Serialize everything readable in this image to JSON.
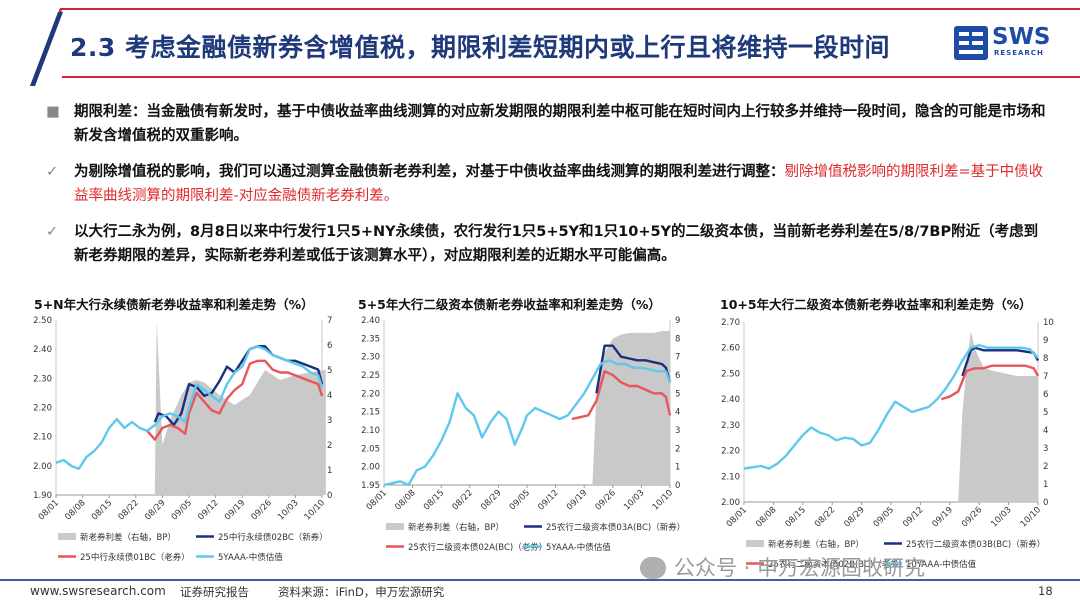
{
  "header": {
    "title": "2.3 考虑金融债新券含增值税，期限利差短期内或上行且将维持一段时间",
    "logo_text": "SWS",
    "logo_sub": "RESEARCH"
  },
  "bullets": [
    {
      "text": "期限利差：当金融债有新发时，基于中债收益率曲线测算的对应新发期限的期限利差中枢可能在短时间内上行较多并维持一段时间，隐含的可能是市场和新发含增值税的双重影响。",
      "highlight": ""
    },
    {
      "text": "为剔除增值税的影响，我们可以通过测算金融债新老券利差，对基于中债收益率曲线测算的期限利差进行调整：",
      "highlight": "剔除增值税影响的期限利差=基于中债收益率曲线测算的期限利差-对应金融债新老券利差。"
    },
    {
      "text": "以大行二永为例，8月8日以来中行发行1只5+NY永续债，农行发行1只5+5Y和1只10+5Y的二级资本债，当前新老券利差在5/8/7BP附近（考虑到新老券期限的差异，实际新老券利差或低于该测算水平），对应期限利差的近期水平可能偏高。",
      "highlight": ""
    }
  ],
  "colors": {
    "grey": "#c9c9c9",
    "navy": "#1a2f80",
    "red": "#e8555a",
    "cyan": "#5ec8ee",
    "title": "#1f3a7a"
  },
  "footer": {
    "website": "www.swsresearch.com",
    "report": "证券研究报告",
    "source": "资料来源：iFinD，申万宏源研究",
    "page": "18"
  },
  "watermark": "公众号 · 申万宏源固收研究",
  "chart_data": [
    {
      "type": "line",
      "title": "5+N年大行永续债新老券收益率和利差走势（%）",
      "xticks": [
        "08/01",
        "08/08",
        "08/15",
        "08/22",
        "08/29",
        "09/05",
        "09/12",
        "09/19",
        "09/26",
        "10/03",
        "10/10"
      ],
      "ylim": [
        1.9,
        2.5
      ],
      "yticks": [
        1.9,
        2.0,
        2.1,
        2.2,
        2.3,
        2.4,
        2.5
      ],
      "y2lim": [
        0,
        7
      ],
      "y2ticks": [
        0,
        1,
        2,
        3,
        4,
        5,
        6,
        7
      ],
      "legend": [
        "新老券利差（右轴，BP）",
        "25中行永续债02BC（新券）",
        "25中行永续债01BC（老券）",
        "5YAAA-中债估值"
      ],
      "series": [
        {
          "name": "新老券利差（右轴，BP）",
          "axis": "right",
          "style": "area",
          "x": [
            26,
            26.5,
            28,
            30,
            33,
            35,
            37,
            39,
            43,
            47,
            51,
            55,
            59,
            63,
            67,
            70,
            71
          ],
          "y": [
            0,
            7,
            2.0,
            3.0,
            4.0,
            4.5,
            4.6,
            4.5,
            4.0,
            3.6,
            4.0,
            5.0,
            4.6,
            4.8,
            4.9,
            5.0,
            5.0
          ]
        },
        {
          "name": "25中行永续债02BC（新券）",
          "axis": "left",
          "style": "line",
          "x": [
            26,
            27,
            29,
            31,
            33,
            35,
            37,
            39,
            41,
            43,
            45,
            47,
            49,
            51,
            53,
            55,
            57,
            59,
            61,
            63,
            65,
            67,
            69,
            70
          ],
          "y": [
            2.15,
            2.18,
            2.17,
            2.14,
            2.18,
            2.28,
            2.27,
            2.24,
            2.25,
            2.29,
            2.34,
            2.32,
            2.36,
            2.4,
            2.41,
            2.41,
            2.38,
            2.37,
            2.36,
            2.36,
            2.35,
            2.34,
            2.33,
            2.28
          ]
        },
        {
          "name": "25中行永续债01BC（老券）",
          "axis": "left",
          "style": "line",
          "x": [
            24,
            26,
            28,
            30,
            32,
            34,
            35,
            37,
            39,
            41,
            43,
            45,
            47,
            49,
            51,
            53,
            55,
            57,
            59,
            61,
            63,
            65,
            67,
            69,
            70
          ],
          "y": [
            2.12,
            2.09,
            2.13,
            2.14,
            2.13,
            2.11,
            2.18,
            2.25,
            2.22,
            2.19,
            2.18,
            2.23,
            2.26,
            2.28,
            2.35,
            2.36,
            2.36,
            2.33,
            2.32,
            2.32,
            2.31,
            2.3,
            2.29,
            2.28,
            2.24
          ]
        },
        {
          "name": "5YAAA-中债估值",
          "axis": "left",
          "style": "line",
          "x": [
            0,
            2,
            4,
            6,
            8,
            10,
            12,
            14,
            16,
            18,
            20,
            22,
            24,
            26,
            28,
            30,
            32,
            34,
            35,
            37,
            39,
            41,
            43,
            45,
            47,
            49,
            51,
            53,
            55,
            57,
            59,
            61,
            63,
            65,
            67,
            69,
            70
          ],
          "y": [
            2.01,
            2.02,
            2.0,
            1.99,
            2.03,
            2.05,
            2.08,
            2.13,
            2.16,
            2.13,
            2.15,
            2.13,
            2.12,
            2.14,
            2.17,
            2.18,
            2.17,
            2.15,
            2.2,
            2.28,
            2.26,
            2.24,
            2.22,
            2.28,
            2.32,
            2.34,
            2.4,
            2.41,
            2.4,
            2.38,
            2.37,
            2.36,
            2.35,
            2.34,
            2.32,
            2.31,
            2.27
          ]
        }
      ]
    },
    {
      "type": "line",
      "title": "5+5年大行二级资本债新老券收益率和利差走势（%）",
      "xticks": [
        "08/01",
        "08/08",
        "08/15",
        "08/22",
        "08/29",
        "09/05",
        "09/12",
        "09/19",
        "09/26",
        "10/03",
        "10/10"
      ],
      "ylim": [
        1.95,
        2.4
      ],
      "yticks": [
        1.95,
        2.0,
        2.05,
        2.1,
        2.15,
        2.2,
        2.25,
        2.3,
        2.35,
        2.4
      ],
      "y2lim": [
        0,
        9
      ],
      "y2ticks": [
        0,
        1,
        2,
        3,
        4,
        5,
        6,
        7,
        8,
        9
      ],
      "legend": [
        "新老券利差（右轴，BP）",
        "25农行二级资本债03A(BC)（新券）",
        "25农行二级资本债02A(BC)（老券）",
        "5YAAA-中债估值"
      ],
      "series": [
        {
          "name": "新老券利差（右轴，BP）",
          "axis": "right",
          "style": "area",
          "x": [
            51,
            52,
            53,
            54,
            56,
            58,
            60,
            62,
            64,
            66,
            68,
            70
          ],
          "y": [
            0,
            5.0,
            6.0,
            7.2,
            8.0,
            8.2,
            8.3,
            8.3,
            8.3,
            8.3,
            8.4,
            8.4
          ]
        },
        {
          "name": "25农行二级资本债03A(BC)（新券）",
          "axis": "left",
          "style": "line",
          "x": [
            52,
            54,
            55,
            56,
            58,
            60,
            62,
            64,
            66,
            68,
            69,
            70
          ],
          "y": [
            2.2,
            2.33,
            2.33,
            2.33,
            2.3,
            2.295,
            2.29,
            2.29,
            2.285,
            2.28,
            2.27,
            2.23
          ]
        },
        {
          "name": "25农行二级资本债02A(BC)（老券）",
          "axis": "left",
          "style": "line",
          "x": [
            46,
            48,
            50,
            52,
            54,
            55,
            56,
            58,
            60,
            62,
            64,
            66,
            68,
            69,
            70
          ],
          "y": [
            2.13,
            2.135,
            2.14,
            2.18,
            2.26,
            2.255,
            2.25,
            2.23,
            2.22,
            2.22,
            2.21,
            2.2,
            2.2,
            2.19,
            2.14
          ]
        },
        {
          "name": "5YAAA-中债估值",
          "axis": "left",
          "style": "line",
          "x": [
            0,
            2,
            4,
            6,
            8,
            10,
            12,
            14,
            16,
            18,
            20,
            22,
            24,
            26,
            28,
            30,
            32,
            34,
            35,
            37,
            39,
            41,
            43,
            45,
            47,
            49,
            51,
            53,
            55,
            57,
            59,
            61,
            63,
            65,
            67,
            69,
            70
          ],
          "y": [
            1.95,
            1.955,
            1.96,
            1.95,
            1.99,
            2.0,
            2.03,
            2.07,
            2.12,
            2.2,
            2.16,
            2.14,
            2.08,
            2.12,
            2.15,
            2.13,
            2.06,
            2.11,
            2.14,
            2.16,
            2.15,
            2.14,
            2.13,
            2.14,
            2.17,
            2.2,
            2.24,
            2.28,
            2.29,
            2.28,
            2.28,
            2.27,
            2.27,
            2.265,
            2.26,
            2.26,
            2.23
          ]
        }
      ]
    },
    {
      "type": "line",
      "title": "10+5年大行二级资本债新老券收益率和利差走势（%）",
      "xticks": [
        "08/01",
        "08/08",
        "08/15",
        "08/22",
        "08/29",
        "09/05",
        "09/12",
        "09/19",
        "09/26",
        "10/03",
        "10/10"
      ],
      "ylim": [
        2.0,
        2.7
      ],
      "yticks": [
        2.0,
        2.1,
        2.2,
        2.3,
        2.4,
        2.5,
        2.6,
        2.7
      ],
      "y2lim": [
        0,
        10
      ],
      "y2ticks": [
        0,
        1,
        2,
        3,
        4,
        5,
        6,
        7,
        8,
        9,
        10
      ],
      "legend": [
        "新老券利差（右轴，BP）",
        "25农行二级资本债03B(BC)（新券）",
        "25农行二级资本债02B(BC)（老券）",
        "10YAAA-中债估值"
      ],
      "series": [
        {
          "name": "新老券利差（右轴，BP）",
          "axis": "right",
          "style": "area",
          "x": [
            51,
            52,
            53,
            54,
            55,
            57,
            59,
            61,
            63,
            65,
            67,
            69,
            70
          ],
          "y": [
            0,
            5.0,
            7.5,
            9.5,
            8.5,
            7.5,
            7.3,
            7.2,
            7.1,
            7.0,
            7.0,
            7.0,
            7.0
          ]
        },
        {
          "name": "25农行二级资本债03B(BC)（新券）",
          "axis": "left",
          "style": "line",
          "x": [
            52,
            54,
            55,
            57,
            59,
            61,
            63,
            65,
            67,
            69,
            70
          ],
          "y": [
            2.49,
            2.59,
            2.6,
            2.59,
            2.59,
            2.59,
            2.59,
            2.59,
            2.585,
            2.58,
            2.55
          ]
        },
        {
          "name": "25农行二级资本债02B(BC)（老券）",
          "axis": "left",
          "style": "line",
          "x": [
            47,
            49,
            51,
            53,
            55,
            57,
            59,
            61,
            63,
            65,
            67,
            69,
            70
          ],
          "y": [
            2.4,
            2.41,
            2.43,
            2.51,
            2.52,
            2.52,
            2.53,
            2.53,
            2.53,
            2.53,
            2.53,
            2.52,
            2.49
          ]
        },
        {
          "name": "10YAAA-中债估值",
          "axis": "left",
          "style": "line",
          "x": [
            0,
            2,
            4,
            6,
            8,
            10,
            12,
            14,
            16,
            18,
            20,
            22,
            24,
            26,
            28,
            30,
            32,
            34,
            36,
            38,
            40,
            42,
            44,
            46,
            48,
            50,
            52,
            54,
            56,
            58,
            60,
            62,
            64,
            66,
            68,
            70
          ],
          "y": [
            2.13,
            2.135,
            2.14,
            2.13,
            2.15,
            2.18,
            2.22,
            2.26,
            2.29,
            2.27,
            2.26,
            2.24,
            2.25,
            2.245,
            2.22,
            2.23,
            2.28,
            2.34,
            2.39,
            2.37,
            2.35,
            2.36,
            2.37,
            2.4,
            2.44,
            2.49,
            2.55,
            2.6,
            2.61,
            2.6,
            2.6,
            2.6,
            2.6,
            2.6,
            2.595,
            2.56
          ]
        }
      ]
    }
  ]
}
